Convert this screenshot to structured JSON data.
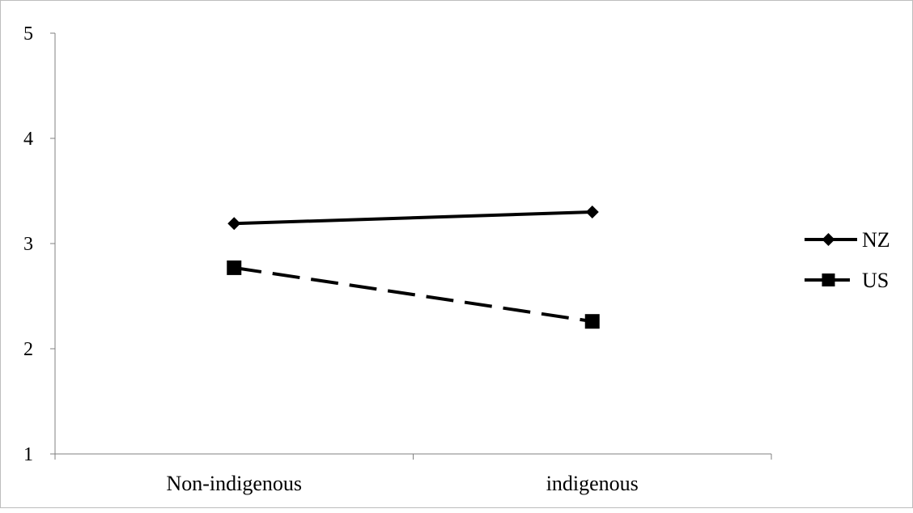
{
  "chart_data": {
    "type": "line",
    "categories": [
      "Non-indigenous",
      "indigenous"
    ],
    "series": [
      {
        "name": "NZ",
        "values": [
          3.19,
          3.3
        ],
        "marker": "diamond",
        "line_style": "solid",
        "color": "#000000"
      },
      {
        "name": "US",
        "values": [
          2.77,
          2.26
        ],
        "marker": "square",
        "line_style": "dashed",
        "color": "#000000"
      }
    ],
    "y_ticks": [
      "1",
      "2",
      "3",
      "4",
      "5"
    ],
    "ylim": [
      1,
      5
    ],
    "grid": false,
    "legend_position": "right"
  }
}
